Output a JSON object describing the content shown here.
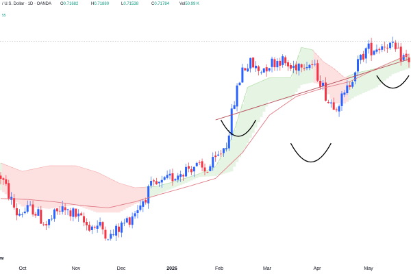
{
  "header": {
    "title": "/ U.S. Dollar · 1D · OANDA",
    "ohlc": [
      {
        "key": "O",
        "value": "0.71682"
      },
      {
        "key": "H",
        "value": "0.71880"
      },
      {
        "key": "L",
        "value": "0.71538"
      },
      {
        "key": "C",
        "value": "0.71784"
      },
      {
        "key": "Vol",
        "value": "50.99 K"
      }
    ],
    "legend2": "55"
  },
  "corner_label": "w",
  "colors": {
    "up": "#2962ff",
    "down": "#f23645",
    "cloud_bull": "#e6f4e3",
    "cloud_bear": "#fde0e0",
    "cloud_bull_edge": "#a6d99a",
    "cloud_bear_edge": "#f4a9a9",
    "ma_long": "#e07a85",
    "ma_short": "#b8555f",
    "annotation": "#000000",
    "ohlc_value": "#089981"
  },
  "chart_data": {
    "type": "candlestick",
    "x_ticks": [
      {
        "label": "Oct",
        "bold": false
      },
      {
        "label": "Nov",
        "bold": false
      },
      {
        "label": "Dec",
        "bold": false
      },
      {
        "label": "2026",
        "bold": true
      },
      {
        "label": "Feb",
        "bold": false
      },
      {
        "label": "Mar",
        "bold": false
      },
      {
        "label": "Apr",
        "bold": false
      },
      {
        "label": "May",
        "bold": false
      }
    ],
    "anchors": [
      [
        0,
        0.692
      ],
      [
        6,
        0.684
      ],
      [
        12,
        0.685
      ],
      [
        17,
        0.6815
      ],
      [
        22,
        0.6848
      ],
      [
        27,
        0.684
      ],
      [
        32,
        0.6815
      ],
      [
        37,
        0.6812
      ],
      [
        41,
        0.679
      ],
      [
        44,
        0.6808
      ],
      [
        48,
        0.683
      ],
      [
        52,
        0.686
      ],
      [
        56,
        0.6895
      ],
      [
        60,
        0.6902
      ],
      [
        64,
        0.6918
      ],
      [
        68,
        0.6933
      ],
      [
        72,
        0.6942
      ],
      [
        76,
        0.693
      ],
      [
        80,
        0.6952
      ],
      [
        84,
        0.699
      ],
      [
        87,
        0.708
      ],
      [
        90,
        0.715
      ],
      [
        93,
        0.716
      ],
      [
        96,
        0.7145
      ],
      [
        100,
        0.716
      ],
      [
        104,
        0.717
      ],
      [
        108,
        0.715
      ],
      [
        112,
        0.7165
      ],
      [
        116,
        0.7158
      ],
      [
        119,
        0.7125
      ],
      [
        122,
        0.708
      ],
      [
        125,
        0.7075
      ],
      [
        128,
        0.709
      ],
      [
        132,
        0.715
      ],
      [
        136,
        0.719
      ],
      [
        140,
        0.7195
      ],
      [
        144,
        0.7205
      ],
      [
        148,
        0.718
      ],
      [
        152,
        0.7168
      ]
    ],
    "cloud": [
      [
        0,
        0.6948,
        0.689
      ],
      [
        8,
        0.693,
        0.6855
      ],
      [
        18,
        0.6942,
        0.685
      ],
      [
        28,
        0.6942,
        0.6858
      ],
      [
        36,
        0.6928,
        0.6842
      ],
      [
        44,
        0.6905,
        0.6842
      ],
      [
        50,
        0.6895,
        0.686
      ],
      [
        58,
        0.6898,
        0.688
      ],
      [
        66,
        0.691,
        0.6898
      ],
      [
        74,
        0.6925,
        0.6918
      ],
      [
        80,
        0.694,
        0.692
      ],
      [
        86,
        0.7,
        0.693
      ],
      [
        92,
        0.711,
        0.699
      ],
      [
        100,
        0.713,
        0.708
      ],
      [
        108,
        0.713,
        0.7085
      ],
      [
        112,
        0.7195,
        0.7115
      ],
      [
        116,
        0.719,
        0.712
      ],
      [
        120,
        0.7165,
        0.7115
      ],
      [
        124,
        0.715,
        0.7075
      ],
      [
        128,
        0.713,
        0.7075
      ],
      [
        132,
        0.714,
        0.709
      ],
      [
        140,
        0.715,
        0.711
      ],
      [
        146,
        0.7165,
        0.7138
      ],
      [
        152,
        0.7175,
        0.715
      ]
    ],
    "ma_long": [
      [
        0,
        0.6872
      ],
      [
        10,
        0.687
      ],
      [
        20,
        0.6865
      ],
      [
        30,
        0.6857
      ],
      [
        40,
        0.6852
      ],
      [
        50,
        0.6865
      ],
      [
        60,
        0.6882
      ],
      [
        70,
        0.6898
      ],
      [
        80,
        0.6915
      ],
      [
        90,
        0.697
      ],
      [
        100,
        0.705
      ],
      [
        110,
        0.709
      ],
      [
        120,
        0.7108
      ],
      [
        130,
        0.7122
      ],
      [
        140,
        0.715
      ],
      [
        152,
        0.718
      ]
    ],
    "trendline": [
      [
        80,
        0.704
      ],
      [
        152,
        0.717
      ]
    ],
    "resistance": 0.7208,
    "arcs": [
      {
        "x0": 82,
        "x1": 95,
        "y": 0.704,
        "depth": 0.0035
      },
      {
        "x0": 108,
        "x1": 123,
        "y": 0.699,
        "depth": 0.004
      },
      {
        "x0": 140,
        "x1": 152,
        "y": 0.7135,
        "depth": 0.0027
      }
    ],
    "n_candles": 153,
    "ylim": [
      0.6775,
      0.7232
    ]
  }
}
